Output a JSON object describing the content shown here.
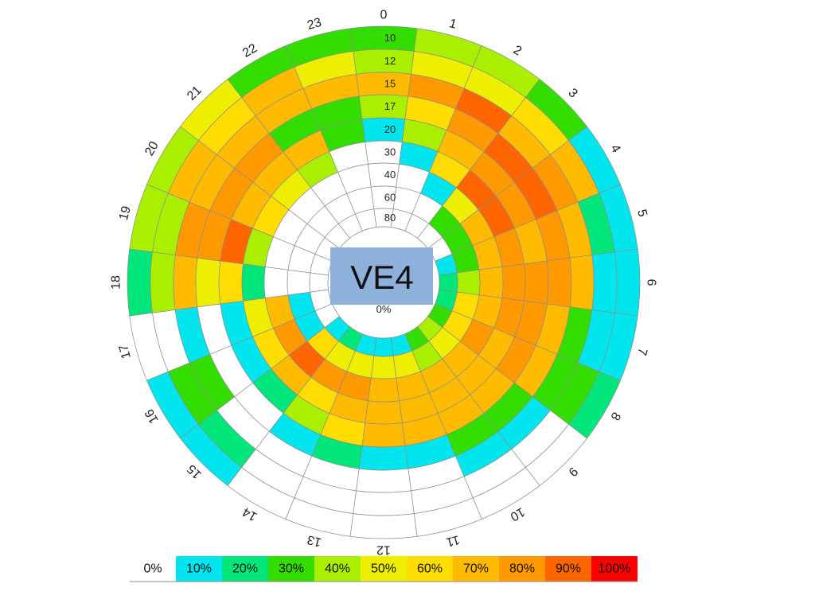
{
  "title": "VE4",
  "chart_data": {
    "type": "heatmap",
    "layout": "polar",
    "title": "VE4",
    "hours": [
      "0",
      "1",
      "2",
      "3",
      "4",
      "5",
      "6",
      "7",
      "8",
      "9",
      "10",
      "11",
      "12",
      "13",
      "14",
      "15",
      "16",
      "17",
      "18",
      "19",
      "20",
      "21",
      "22",
      "23"
    ],
    "ring_labels": [
      "10",
      "12",
      "15",
      "17",
      "20",
      "30",
      "40",
      "60",
      "80"
    ],
    "center_label": "0%",
    "color_scale": {
      "labels": [
        "0%",
        "10%",
        "20%",
        "30%",
        "40%",
        "50%",
        "60%",
        "70%",
        "80%",
        "90%",
        "100%"
      ],
      "colors": [
        "#ffffff",
        "#00e5ee",
        "#00e67a",
        "#33dd00",
        "#aaee00",
        "#eeee00",
        "#ffdd00",
        "#ffbb00",
        "#ff9900",
        "#ff6600",
        "#ff0000"
      ]
    },
    "values": [
      [
        30,
        40,
        40,
        30,
        10,
        10,
        10,
        10,
        20,
        0,
        0,
        0,
        0,
        0,
        0,
        10,
        10,
        0,
        20,
        40,
        40,
        50,
        30,
        30
      ],
      [
        40,
        50,
        50,
        60,
        70,
        20,
        10,
        10,
        30,
        0,
        0,
        0,
        0,
        0,
        0,
        20,
        30,
        0,
        40,
        40,
        70,
        60,
        70,
        50
      ],
      [
        70,
        80,
        90,
        70,
        80,
        70,
        70,
        30,
        30,
        10,
        10,
        0,
        0,
        0,
        0,
        0,
        30,
        10,
        70,
        80,
        70,
        70,
        70,
        70
      ],
      [
        40,
        60,
        80,
        90,
        90,
        80,
        80,
        70,
        70,
        30,
        30,
        10,
        10,
        20,
        10,
        0,
        0,
        0,
        50,
        80,
        80,
        80,
        30,
        30
      ],
      [
        10,
        40,
        70,
        80,
        80,
        70,
        80,
        80,
        80,
        70,
        70,
        70,
        70,
        60,
        40,
        20,
        10,
        10,
        60,
        90,
        70,
        70,
        70,
        30
      ],
      [
        0,
        10,
        60,
        90,
        90,
        80,
        80,
        80,
        70,
        70,
        70,
        70,
        70,
        70,
        60,
        70,
        60,
        50,
        20,
        40,
        60,
        50,
        40,
        0
      ],
      [
        0,
        0,
        10,
        50,
        70,
        70,
        70,
        70,
        80,
        70,
        70,
        70,
        70,
        80,
        80,
        90,
        80,
        70,
        0,
        0,
        0,
        0,
        0,
        0
      ],
      [
        0,
        0,
        0,
        30,
        30,
        30,
        40,
        60,
        60,
        50,
        40,
        50,
        50,
        50,
        50,
        60,
        10,
        10,
        0,
        0,
        0,
        0,
        0,
        0
      ],
      [
        0,
        0,
        0,
        0,
        0,
        10,
        20,
        20,
        30,
        40,
        30,
        10,
        10,
        10,
        20,
        10,
        0,
        0,
        0,
        0,
        0,
        0,
        0,
        0
      ]
    ]
  }
}
